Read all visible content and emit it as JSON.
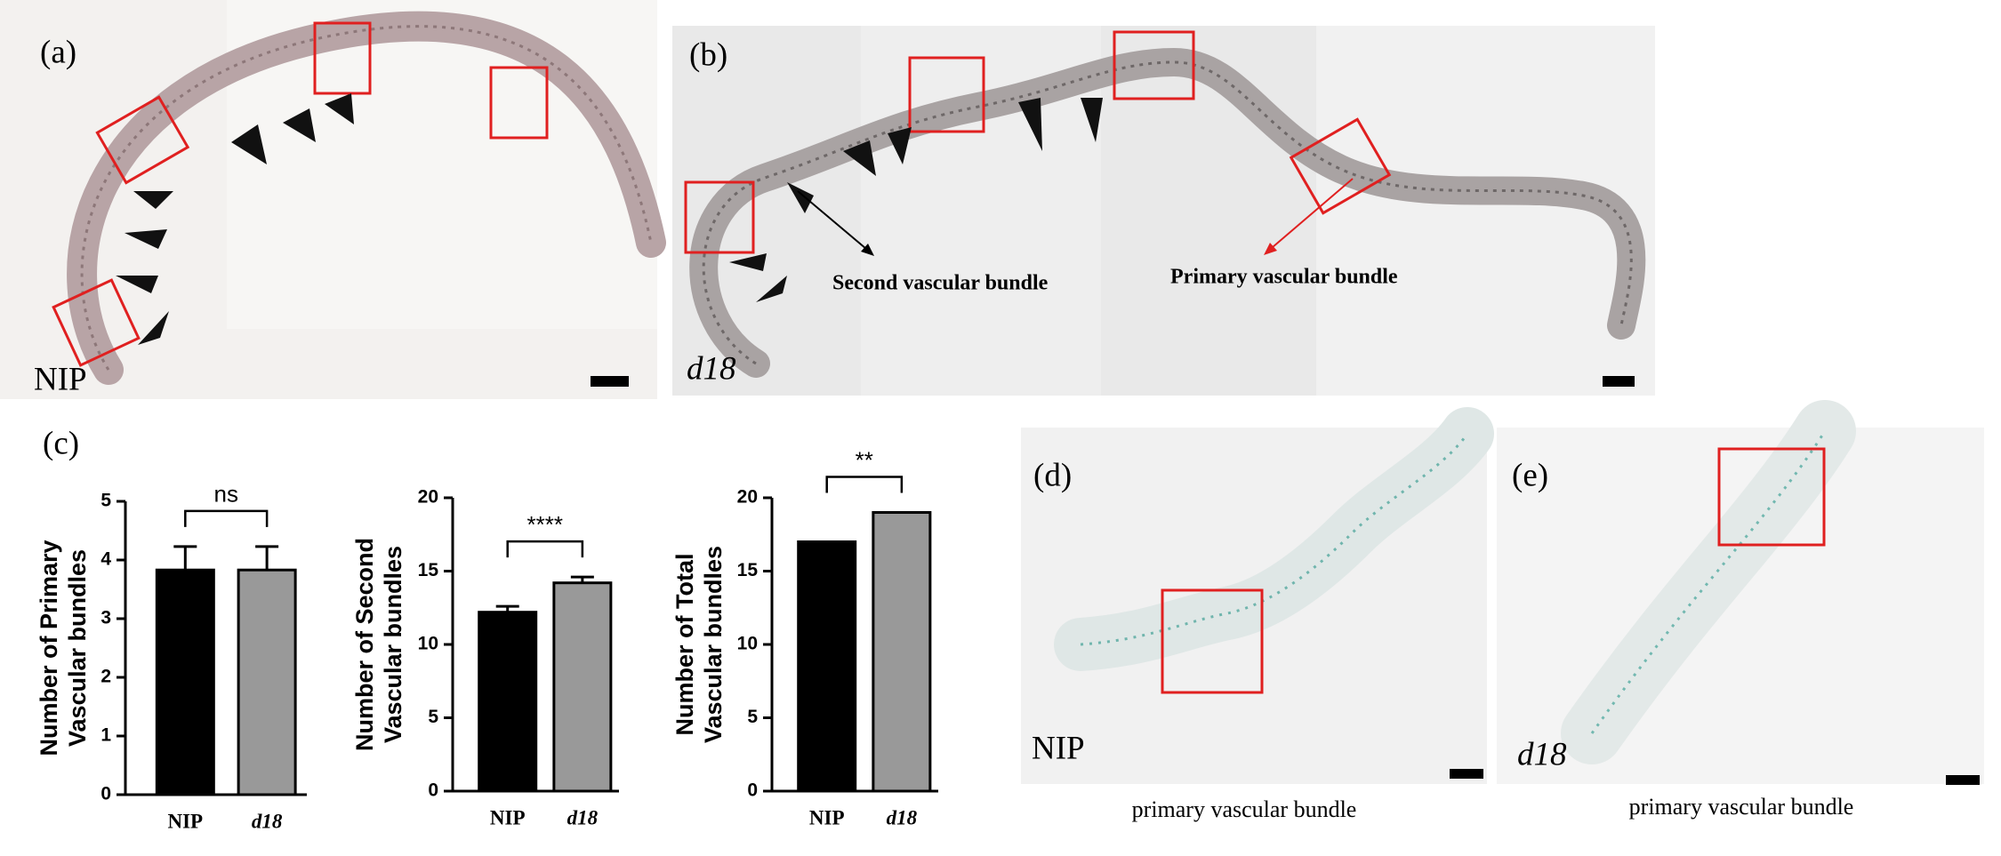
{
  "panels": {
    "a": {
      "label": "(a)",
      "genotype": "NIP"
    },
    "b": {
      "label": "(b)",
      "genotype": "d18",
      "annotations": [
        "Second vascular bundle",
        "Primary vascular bundle"
      ]
    },
    "c": {
      "label": "(c)"
    },
    "d": {
      "label": "(d)",
      "genotype": "NIP",
      "caption": "primary vascular bundle"
    },
    "e": {
      "label": "(e)",
      "genotype": "d18",
      "caption": "primary vascular bundle"
    }
  },
  "chart_data": [
    {
      "type": "bar",
      "ylabel": [
        "Number of Primary",
        "Vascular bundles"
      ],
      "categories": [
        "NIP",
        "d18"
      ],
      "values": [
        3.83,
        3.83
      ],
      "errors": [
        0.4,
        0.4
      ],
      "colors": [
        "#000000",
        "#999999"
      ],
      "ylim": [
        0,
        5
      ],
      "yticks": [
        0,
        1,
        2,
        3,
        4,
        5
      ],
      "significance": "ns"
    },
    {
      "type": "bar",
      "ylabel": [
        "Number of Second",
        "Vascular bundles"
      ],
      "categories": [
        "NIP",
        "d18"
      ],
      "values": [
        12.2,
        14.2
      ],
      "errors": [
        0.4,
        0.4
      ],
      "colors": [
        "#000000",
        "#999999"
      ],
      "ylim": [
        0,
        20
      ],
      "yticks": [
        0,
        5,
        10,
        15,
        20
      ],
      "significance": "****"
    },
    {
      "type": "bar",
      "ylabel": [
        "Number of Total",
        "Vascular bundles"
      ],
      "categories": [
        "NIP",
        "d18"
      ],
      "values": [
        17,
        19
      ],
      "colors": [
        "#000000",
        "#999999"
      ],
      "ylim": [
        0,
        20
      ],
      "yticks": [
        0,
        5,
        10,
        15,
        20
      ],
      "significance": "**"
    }
  ]
}
